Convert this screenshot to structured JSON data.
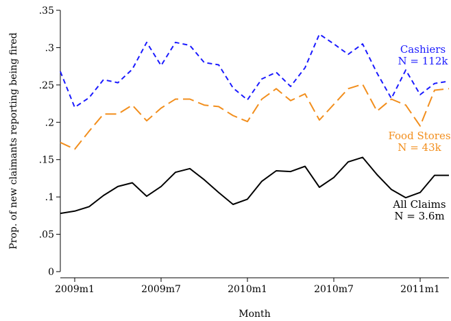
{
  "chart_data": {
    "type": "line",
    "xlabel": "Month",
    "ylabel": "Prop. of new claimants reporting being fired",
    "ylim": [
      0,
      0.35
    ],
    "yticks": [
      0,
      0.05,
      0.1,
      0.15,
      0.2,
      0.25,
      0.3,
      0.35
    ],
    "ytick_labels": [
      "0",
      ".05",
      ".1",
      ".15",
      ".2",
      ".25",
      ".3",
      ".35"
    ],
    "xlim": [
      "2008m12",
      "2011m3"
    ],
    "xticks": [
      "2009m1",
      "2009m7",
      "2010m1",
      "2010m7",
      "2011m1"
    ],
    "xtick_labels": [
      "2009m1",
      "2009m7",
      "2010m1",
      "2010m7",
      "2011m1"
    ],
    "grid": false,
    "x": [
      "2008m12",
      "2009m1",
      "2009m2",
      "2009m3",
      "2009m4",
      "2009m5",
      "2009m6",
      "2009m7",
      "2009m8",
      "2009m9",
      "2009m10",
      "2009m11",
      "2009m12",
      "2010m1",
      "2010m2",
      "2010m3",
      "2010m4",
      "2010m5",
      "2010m6",
      "2010m7",
      "2010m8",
      "2010m9",
      "2010m10",
      "2010m11",
      "2010m12",
      "2011m1",
      "2011m2",
      "2011m3"
    ],
    "series": [
      {
        "name": "Cashiers",
        "label_lines": [
          "Cashiers",
          "N = 112k"
        ],
        "color": "#1a1aff",
        "dash": "short",
        "values": [
          0.268,
          0.22,
          0.233,
          0.257,
          0.253,
          0.271,
          0.307,
          0.276,
          0.307,
          0.303,
          0.28,
          0.277,
          0.246,
          0.23,
          0.258,
          0.267,
          0.248,
          0.273,
          0.318,
          0.305,
          0.291,
          0.305,
          0.266,
          0.232,
          0.27,
          0.237,
          0.252,
          0.255
        ]
      },
      {
        "name": "Food Stores",
        "label_lines": [
          "Food Stores",
          "N = 43k"
        ],
        "color": "#f28e1c",
        "dash": "long",
        "values": [
          0.173,
          0.164,
          0.188,
          0.211,
          0.211,
          0.223,
          0.202,
          0.219,
          0.231,
          0.231,
          0.223,
          0.221,
          0.209,
          0.201,
          0.231,
          0.245,
          0.229,
          0.238,
          0.203,
          0.224,
          0.245,
          0.251,
          0.215,
          0.231,
          0.223,
          0.195,
          0.243,
          0.245
        ]
      },
      {
        "name": "All Claims",
        "label_lines": [
          "All Claims",
          "N = 3.6m"
        ],
        "color": "#000000",
        "dash": "solid",
        "values": [
          0.078,
          0.081,
          0.087,
          0.102,
          0.114,
          0.119,
          0.101,
          0.114,
          0.133,
          0.138,
          0.123,
          0.106,
          0.09,
          0.097,
          0.121,
          0.135,
          0.134,
          0.141,
          0.113,
          0.126,
          0.147,
          0.153,
          0.13,
          0.11,
          0.099,
          0.106,
          0.129,
          0.129
        ]
      }
    ]
  }
}
